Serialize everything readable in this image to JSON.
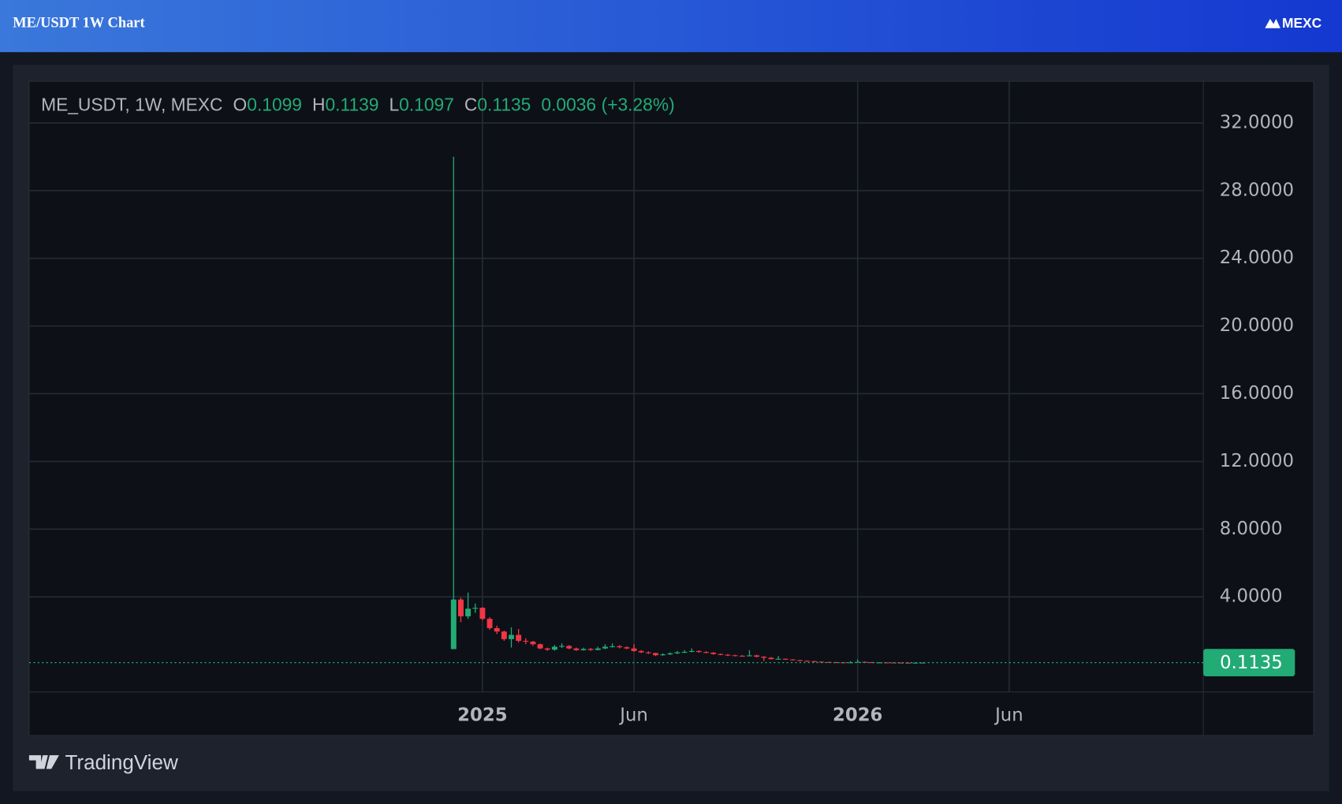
{
  "header": {
    "title": "ME/USDT 1W Chart",
    "brand": "MEXC"
  },
  "footer": {
    "brand": "TradingView"
  },
  "chart_data": {
    "type": "candlestick",
    "symbol": "ME_USDT, 1W, MEXC",
    "ohlc_labels": [
      "O",
      "H",
      "L",
      "C"
    ],
    "change": 0.0036,
    "change_label": "(+3.28%)",
    "up_color": "#22ab75",
    "down_color": "#f23645",
    "grid": true,
    "ylim": [
      -1.62,
      34.46
    ],
    "yticks": [
      {
        "value": 4,
        "label": "4.0000"
      },
      {
        "value": 8,
        "label": "8.0000"
      },
      {
        "value": 12,
        "label": "12.0000"
      },
      {
        "value": 16,
        "label": "16.0000"
      },
      {
        "value": 20,
        "label": "20.0000"
      },
      {
        "value": 24,
        "label": "24.0000"
      },
      {
        "value": 28,
        "label": "28.0000"
      },
      {
        "value": 32,
        "label": "32.0000"
      }
    ],
    "categories": [
      null,
      null,
      null,
      null,
      "2025",
      null,
      null,
      null,
      null,
      null,
      null,
      null,
      null,
      null,
      null,
      null,
      null,
      null,
      null,
      null,
      null,
      null,
      null,
      null,
      null,
      "Jun",
      null,
      null,
      null,
      null,
      null,
      null,
      null,
      null,
      null,
      null,
      null,
      null,
      null,
      null,
      null,
      null,
      null,
      null,
      null,
      null,
      null,
      null,
      null,
      null,
      null,
      null,
      null,
      null,
      null,
      null,
      "2026",
      null,
      null,
      null,
      null,
      null,
      null,
      null,
      null,
      null,
      null,
      null,
      null,
      null,
      null,
      null,
      null,
      null,
      null,
      null,
      null,
      "Jun"
    ],
    "open": [
      0.91,
      3.84,
      2.85,
      3.3,
      3.35,
      2.7,
      2.15,
      1.95,
      1.5,
      1.75,
      1.4,
      1.35,
      1.2,
      0.95,
      0.88,
      1.05,
      1.1,
      0.95,
      0.85,
      0.92,
      0.86,
      0.95,
      1.05,
      1.08,
      1.02,
      0.95,
      0.8,
      0.72,
      0.68,
      0.55,
      0.6,
      0.66,
      0.72,
      0.75,
      0.8,
      0.74,
      0.7,
      0.62,
      0.58,
      0.55,
      0.52,
      0.5,
      0.54,
      0.46,
      0.4,
      0.32,
      0.34,
      0.3,
      0.26,
      0.22,
      0.2,
      0.17,
      0.15,
      0.14,
      0.13,
      0.12,
      0.13,
      0.16,
      0.14,
      0.12,
      0.125,
      0.118,
      0.112,
      0.108,
      0.105,
      0.1099,
      null,
      null,
      null,
      null,
      null,
      null,
      null,
      null,
      null,
      null,
      null,
      null
    ],
    "high": [
      30.0,
      3.95,
      4.25,
      3.6,
      3.4,
      2.8,
      2.3,
      2.0,
      2.2,
      2.1,
      1.55,
      1.4,
      1.25,
      1.0,
      1.15,
      1.25,
      1.15,
      1.0,
      1.0,
      0.98,
      1.05,
      1.2,
      1.25,
      1.15,
      1.08,
      1.2,
      0.85,
      0.78,
      0.7,
      0.66,
      0.72,
      0.8,
      0.85,
      0.95,
      0.84,
      0.78,
      0.74,
      0.66,
      0.62,
      0.58,
      0.56,
      0.85,
      0.58,
      0.5,
      0.44,
      0.5,
      0.36,
      0.32,
      0.28,
      0.24,
      0.22,
      0.19,
      0.17,
      0.16,
      0.15,
      0.2,
      0.3,
      0.18,
      0.16,
      0.14,
      0.13,
      0.125,
      0.12,
      0.115,
      0.12,
      0.1139,
      null,
      null,
      null,
      null,
      null,
      null,
      null,
      null,
      null,
      null,
      null,
      null
    ],
    "low": [
      0.91,
      2.5,
      2.7,
      3.05,
      2.6,
      2.05,
      1.8,
      1.4,
      1.0,
      1.3,
      1.2,
      1.1,
      0.9,
      0.8,
      0.82,
      0.98,
      0.9,
      0.8,
      0.82,
      0.8,
      0.84,
      0.9,
      1.0,
      0.95,
      0.9,
      0.75,
      0.68,
      0.62,
      0.5,
      0.52,
      0.56,
      0.62,
      0.68,
      0.72,
      0.7,
      0.66,
      0.58,
      0.55,
      0.5,
      0.48,
      0.46,
      0.48,
      0.42,
      0.2,
      0.3,
      0.3,
      0.27,
      0.24,
      0.2,
      0.18,
      0.15,
      0.14,
      0.12,
      0.11,
      0.1,
      0.11,
      0.12,
      0.12,
      0.1,
      0.1,
      0.105,
      0.1,
      0.1,
      0.098,
      0.1,
      0.1097,
      null,
      null,
      null,
      null,
      null,
      null,
      null,
      null,
      null,
      null,
      null,
      null
    ],
    "close": [
      3.84,
      2.85,
      3.3,
      3.35,
      2.7,
      2.15,
      1.95,
      1.5,
      1.75,
      1.4,
      1.35,
      1.2,
      0.95,
      0.88,
      1.05,
      1.1,
      0.95,
      0.85,
      0.92,
      0.86,
      0.95,
      1.05,
      1.08,
      1.02,
      0.95,
      0.8,
      0.72,
      0.68,
      0.55,
      0.6,
      0.66,
      0.72,
      0.75,
      0.8,
      0.74,
      0.7,
      0.62,
      0.58,
      0.55,
      0.52,
      0.5,
      0.54,
      0.46,
      0.4,
      0.32,
      0.34,
      0.3,
      0.26,
      0.22,
      0.2,
      0.17,
      0.15,
      0.14,
      0.13,
      0.12,
      0.13,
      0.16,
      0.14,
      0.12,
      0.125,
      0.118,
      0.112,
      0.108,
      0.105,
      0.1099,
      0.1135,
      null,
      null,
      null,
      null,
      null,
      null,
      null,
      null,
      null,
      null,
      null,
      null
    ]
  }
}
